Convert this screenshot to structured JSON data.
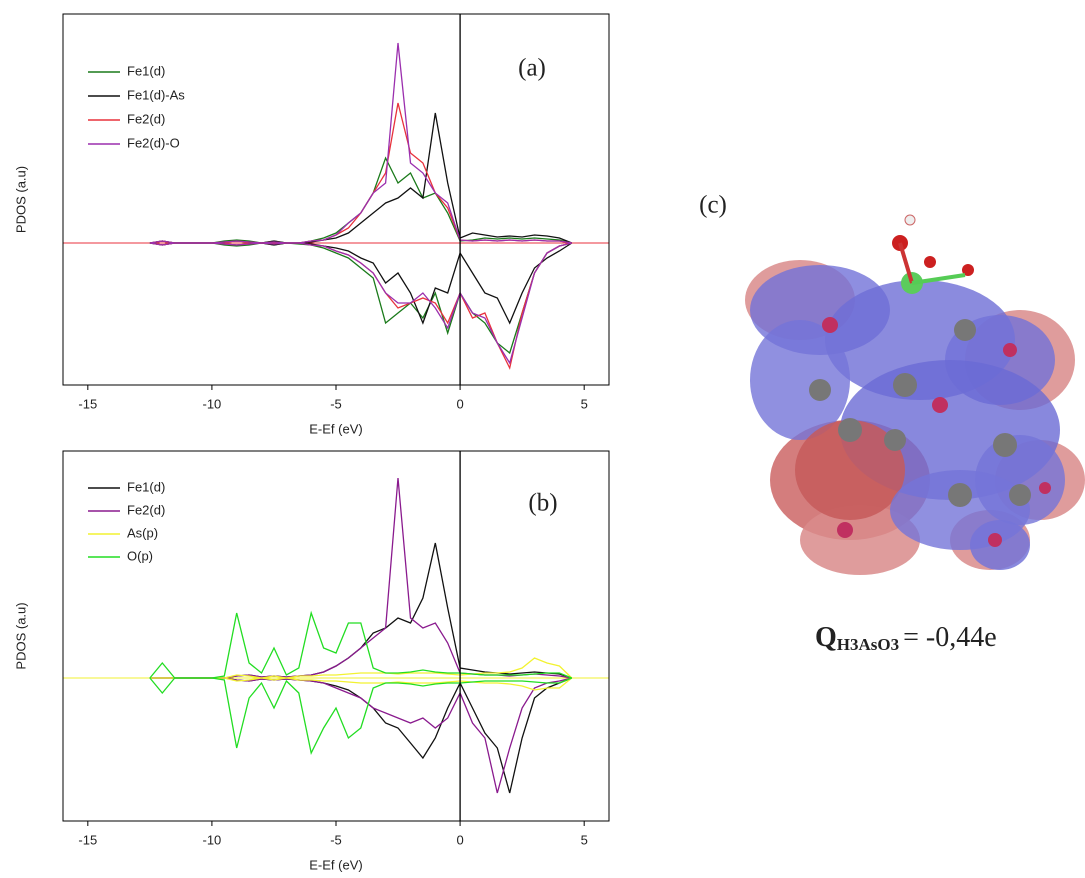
{
  "chart_data": [
    {
      "type": "line",
      "panel_label": "(a)",
      "x_label": "E-Ef (eV)",
      "y_label": "PDOS (a.u)",
      "xlim": [
        -16,
        6
      ],
      "xticks": [
        -15,
        -10,
        -5,
        0,
        5
      ],
      "ylim": [
        -1.42,
        2.29
      ],
      "vline": 0,
      "hline": 0,
      "x": [
        -12.5,
        -12,
        -11.5,
        -11,
        -10.5,
        -10,
        -9.5,
        -9,
        -8.5,
        -8,
        -7.5,
        -7,
        -6.5,
        -6,
        -5.5,
        -5,
        -4.5,
        -4,
        -3.5,
        -3,
        -2.5,
        -2,
        -1.5,
        -1,
        -0.5,
        0,
        0.5,
        1,
        1.5,
        2,
        2.5,
        3,
        3.5,
        4,
        4.5
      ],
      "series": [
        {
          "name": "Fe1(d)",
          "color": "#1a7a1a",
          "values": [
            0,
            0.02,
            0,
            0,
            0,
            0,
            0.02,
            0.03,
            0.02,
            0,
            0.02,
            0,
            0,
            0.02,
            0.05,
            0.1,
            0.2,
            0.3,
            0.5,
            0.85,
            0.6,
            0.7,
            0.45,
            0.5,
            0.3,
            0.02,
            0.03,
            0.05,
            0.04,
            0.05,
            0.04,
            0.05,
            0.04,
            0.03,
            0
          ],
          "down_values": [
            0,
            -0.02,
            0,
            0,
            0,
            0,
            -0.02,
            -0.03,
            -0.02,
            0,
            -0.02,
            0,
            -0.01,
            -0.02,
            -0.05,
            -0.1,
            -0.15,
            -0.25,
            -0.35,
            -0.8,
            -0.7,
            -0.6,
            -0.75,
            -0.5,
            -0.9,
            -0.5,
            -0.7,
            -0.8,
            -1.0,
            -1.1,
            -0.7,
            -0.3,
            -0.1,
            -0.03,
            0
          ]
        },
        {
          "name": "Fe1(d)-As",
          "color": "#111111",
          "values": [
            0,
            0.02,
            0,
            0,
            0,
            0,
            0.01,
            0.02,
            0.01,
            0,
            0.02,
            0,
            0,
            0.01,
            0.03,
            0.05,
            0.1,
            0.2,
            0.3,
            0.4,
            0.45,
            0.55,
            0.45,
            1.3,
            0.6,
            0.05,
            0.1,
            0.08,
            0.06,
            0.07,
            0.06,
            0.08,
            0.07,
            0.05,
            0
          ],
          "down_values": [
            0,
            -0.02,
            0,
            0,
            0,
            0,
            -0.01,
            -0.02,
            -0.01,
            0,
            -0.02,
            0,
            0,
            -0.01,
            -0.03,
            -0.05,
            -0.08,
            -0.15,
            -0.2,
            -0.4,
            -0.3,
            -0.5,
            -0.8,
            -0.45,
            -0.5,
            -0.1,
            -0.3,
            -0.5,
            -0.55,
            -0.8,
            -0.5,
            -0.25,
            -0.15,
            -0.08,
            0
          ]
        },
        {
          "name": "Fe2(d)",
          "color": "#e8323c",
          "values": [
            0,
            0.02,
            0,
            0,
            0,
            0,
            0.01,
            0.02,
            0.01,
            0,
            0.01,
            0,
            0,
            0.02,
            0.03,
            0.08,
            0.15,
            0.3,
            0.5,
            0.7,
            1.4,
            0.9,
            0.8,
            0.5,
            0.35,
            0.03,
            0.02,
            0.03,
            0.02,
            0.03,
            0.02,
            0.03,
            0.02,
            0.02,
            0
          ],
          "down_values": [
            0,
            -0.02,
            0,
            0,
            0,
            0,
            -0.01,
            -0.02,
            -0.01,
            0,
            -0.01,
            0,
            0,
            -0.02,
            -0.03,
            -0.08,
            -0.12,
            -0.2,
            -0.3,
            -0.5,
            -0.65,
            -0.6,
            -0.55,
            -0.6,
            -0.8,
            -0.5,
            -0.75,
            -0.7,
            -1.0,
            -1.25,
            -0.7,
            -0.3,
            -0.1,
            -0.03,
            0
          ]
        },
        {
          "name": "Fe2(d)-O",
          "color": "#9b2fae",
          "values": [
            0,
            0.02,
            0,
            0,
            0,
            0,
            0.01,
            0.02,
            0.01,
            0,
            0.01,
            0,
            0,
            0.02,
            0.03,
            0.08,
            0.2,
            0.3,
            0.5,
            0.6,
            2.0,
            0.8,
            0.7,
            0.5,
            0.4,
            0.03,
            0.02,
            0.03,
            0.02,
            0.03,
            0.02,
            0.03,
            0.02,
            0.02,
            0
          ],
          "down_values": [
            0,
            -0.02,
            0,
            0,
            0,
            0,
            -0.01,
            -0.02,
            -0.01,
            0,
            -0.01,
            0,
            0,
            -0.02,
            -0.03,
            -0.08,
            -0.12,
            -0.2,
            -0.3,
            -0.5,
            -0.6,
            -0.6,
            -0.5,
            -0.65,
            -0.85,
            -0.5,
            -0.7,
            -0.75,
            -1.0,
            -1.2,
            -0.75,
            -0.3,
            -0.1,
            -0.03,
            0
          ]
        }
      ]
    },
    {
      "type": "line",
      "panel_label": "(b)",
      "x_label": "E-Ef (eV)",
      "y_label": "PDOS (a.u)",
      "xlim": [
        -16,
        6
      ],
      "xticks": [
        -15,
        -10,
        -5,
        0,
        5
      ],
      "ylim": [
        -1.43,
        2.27
      ],
      "vline": 0,
      "hline": 0,
      "x": [
        -12.5,
        -12,
        -11.5,
        -11,
        -10.5,
        -10,
        -9.5,
        -9,
        -8.5,
        -8,
        -7.5,
        -7,
        -6.5,
        -6,
        -5.5,
        -5,
        -4.5,
        -4,
        -3.5,
        -3,
        -2.5,
        -2,
        -1.5,
        -1,
        -0.5,
        0,
        0.5,
        1,
        1.5,
        2,
        2.5,
        3,
        3.5,
        4,
        4.5
      ],
      "series": [
        {
          "name": "Fe1(d)",
          "color": "#111111",
          "values": [
            0,
            0,
            0,
            0,
            0,
            0,
            0,
            0.02,
            0.03,
            0.01,
            0.02,
            0.01,
            0.02,
            0.03,
            0.06,
            0.12,
            0.2,
            0.3,
            0.45,
            0.5,
            0.6,
            0.55,
            0.8,
            1.35,
            0.7,
            0.1,
            0.08,
            0.06,
            0.05,
            0.04,
            0.05,
            0.06,
            0.05,
            0.04,
            0
          ],
          "down_values": [
            0,
            0,
            0,
            0,
            0,
            0,
            0,
            -0.02,
            -0.03,
            -0.01,
            -0.02,
            -0.01,
            -0.02,
            -0.03,
            -0.05,
            -0.08,
            -0.12,
            -0.2,
            -0.3,
            -0.45,
            -0.5,
            -0.65,
            -0.8,
            -0.6,
            -0.3,
            -0.05,
            -0.3,
            -0.55,
            -0.7,
            -1.15,
            -0.6,
            -0.2,
            -0.1,
            -0.05,
            0
          ]
        },
        {
          "name": "Fe2(d)",
          "color": "#8a1a8e",
          "values": [
            0,
            0,
            0,
            0,
            0,
            0,
            0,
            0.02,
            0.03,
            0.01,
            0.02,
            0.01,
            0.02,
            0.03,
            0.06,
            0.12,
            0.2,
            0.3,
            0.4,
            0.5,
            2.0,
            0.6,
            0.5,
            0.55,
            0.35,
            0.05,
            0.04,
            0.03,
            0.03,
            0.02,
            0.03,
            0.04,
            0.03,
            0.02,
            0
          ],
          "down_values": [
            0,
            0,
            0,
            0,
            0,
            0,
            0,
            -0.02,
            -0.03,
            -0.01,
            -0.02,
            -0.01,
            -0.02,
            -0.03,
            -0.05,
            -0.1,
            -0.15,
            -0.2,
            -0.3,
            -0.35,
            -0.4,
            -0.45,
            -0.4,
            -0.5,
            -0.4,
            -0.15,
            -0.45,
            -0.6,
            -1.15,
            -0.7,
            -0.3,
            -0.1,
            -0.05,
            -0.03,
            0
          ]
        },
        {
          "name": "As(p)",
          "color": "#f2f230",
          "values": [
            0,
            0,
            0,
            0,
            0,
            0,
            0,
            0.03,
            0.02,
            0,
            0.02,
            0,
            0.02,
            0.02,
            0.03,
            0.03,
            0.04,
            0.05,
            0.05,
            0.05,
            0.04,
            0.05,
            0.05,
            0.05,
            0.04,
            0.03,
            0.04,
            0.05,
            0.05,
            0.06,
            0.1,
            0.2,
            0.15,
            0.12,
            0
          ],
          "down_values": [
            0,
            0,
            0,
            0,
            0,
            0,
            0,
            -0.03,
            -0.02,
            0,
            -0.02,
            0,
            -0.02,
            -0.02,
            -0.03,
            -0.03,
            -0.04,
            -0.05,
            -0.05,
            -0.05,
            -0.04,
            -0.05,
            -0.05,
            -0.05,
            -0.04,
            -0.03,
            -0.04,
            -0.05,
            -0.05,
            -0.06,
            -0.08,
            -0.12,
            -0.1,
            -0.1,
            0
          ]
        },
        {
          "name": "O(p)",
          "color": "#22dd22",
          "values": [
            0,
            0.15,
            0,
            0,
            0,
            0,
            0.02,
            0.65,
            0.15,
            0.05,
            0.3,
            0.03,
            0.1,
            0.65,
            0.3,
            0.25,
            0.55,
            0.55,
            0.1,
            0.05,
            0.05,
            0.06,
            0.08,
            0.06,
            0.05,
            0.05,
            0.04,
            0.03,
            0.03,
            0.03,
            0.03,
            0.04,
            0.05,
            0.05,
            0
          ],
          "down_values": [
            0,
            -0.15,
            0,
            0,
            0,
            0,
            -0.02,
            -0.7,
            -0.2,
            -0.05,
            -0.3,
            -0.03,
            -0.15,
            -0.75,
            -0.5,
            -0.3,
            -0.6,
            -0.5,
            -0.1,
            -0.05,
            -0.05,
            -0.06,
            -0.08,
            -0.06,
            -0.05,
            -0.05,
            -0.04,
            -0.03,
            -0.03,
            -0.03,
            -0.03,
            -0.04,
            -0.05,
            -0.05,
            0
          ]
        }
      ]
    }
  ],
  "panel_c": {
    "label": "(c)",
    "charge_symbol": "Q",
    "charge_subscript": "H3AsO3",
    "charge_value": "= -0,44e"
  }
}
